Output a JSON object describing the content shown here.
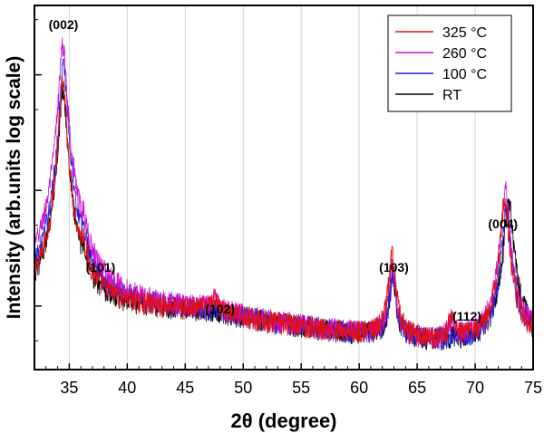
{
  "chart_data": {
    "type": "line",
    "title": "",
    "xlabel": "2θ (degree)",
    "ylabel": "Intensity (arb.units log scale)",
    "xlim": [
      32,
      75
    ],
    "x_ticks": [
      35,
      40,
      45,
      50,
      55,
      60,
      65,
      70,
      75
    ],
    "x_tick_labels": [
      "35",
      "40",
      "45",
      "50",
      "55",
      "60",
      "65",
      "70",
      "75"
    ],
    "y_scale": "log",
    "y_tick_labels_shown": false,
    "grid": "vertical",
    "legend_position": "top-right",
    "series": [
      {
        "name": "325 °C",
        "color": "#e01010",
        "baseline": [
          [
            32,
            1.0
          ],
          [
            40,
            0.95
          ],
          [
            47,
            0.9
          ],
          [
            52,
            0.72
          ],
          [
            58,
            0.6
          ],
          [
            62,
            0.55
          ],
          [
            66,
            0.5
          ],
          [
            70,
            0.5
          ],
          [
            75,
            0.55
          ]
        ],
        "peaks": [
          {
            "x": 34.45,
            "height": 82,
            "width": 0.28
          },
          {
            "x": 36.25,
            "height": 1.35,
            "width": 0.2
          },
          {
            "x": 47.55,
            "height": 0.3,
            "width": 0.28
          },
          {
            "x": 62.85,
            "height": 2.2,
            "width": 0.28
          },
          {
            "x": 67.95,
            "height": 0.3,
            "width": 0.25
          },
          {
            "x": 72.55,
            "height": 7.5,
            "width": 0.32
          }
        ]
      },
      {
        "name": "260 °C",
        "color": "#d010d0",
        "baseline": [
          [
            32,
            1.0
          ],
          [
            40,
            0.95
          ],
          [
            47,
            0.9
          ],
          [
            52,
            0.72
          ],
          [
            58,
            0.6
          ],
          [
            62,
            0.55
          ],
          [
            66,
            0.5
          ],
          [
            70,
            0.5
          ],
          [
            75,
            0.55
          ]
        ],
        "peaks": [
          {
            "x": 34.45,
            "height": 180,
            "width": 0.28
          },
          {
            "x": 36.25,
            "height": 1.5,
            "width": 0.2
          },
          {
            "x": 47.55,
            "height": 0.2,
            "width": 0.28
          },
          {
            "x": 62.85,
            "height": 1.6,
            "width": 0.28
          },
          {
            "x": 67.95,
            "height": 0.2,
            "width": 0.25
          },
          {
            "x": 72.6,
            "height": 9.8,
            "width": 0.32
          }
        ]
      },
      {
        "name": "100 °C",
        "color": "#2020e0",
        "baseline": [
          [
            32,
            1.0
          ],
          [
            40,
            0.95
          ],
          [
            47,
            0.9
          ],
          [
            52,
            0.72
          ],
          [
            58,
            0.6
          ],
          [
            62,
            0.55
          ],
          [
            66,
            0.5
          ],
          [
            70,
            0.5
          ],
          [
            75,
            0.55
          ]
        ],
        "peaks": [
          {
            "x": 34.5,
            "height": 120,
            "width": 0.28
          },
          {
            "x": 36.3,
            "height": 1.0,
            "width": 0.2
          },
          {
            "x": 62.9,
            "height": 1.3,
            "width": 0.28
          },
          {
            "x": 72.7,
            "height": 6.5,
            "width": 0.32
          }
        ]
      },
      {
        "name": "RT",
        "color": "#000000",
        "baseline": [
          [
            32,
            1.0
          ],
          [
            40,
            0.95
          ],
          [
            47,
            0.9
          ],
          [
            52,
            0.72
          ],
          [
            58,
            0.6
          ],
          [
            62,
            0.55
          ],
          [
            66,
            0.5
          ],
          [
            70,
            0.5
          ],
          [
            75,
            0.55
          ]
        ],
        "peaks": [
          {
            "x": 34.45,
            "height": 75,
            "width": 0.28
          },
          {
            "x": 36.3,
            "height": 0.8,
            "width": 0.2
          },
          {
            "x": 62.9,
            "height": 1.2,
            "width": 0.28
          },
          {
            "x": 72.9,
            "height": 7.2,
            "width": 0.35
          }
        ]
      }
    ],
    "annotations": [
      {
        "text": "(002)",
        "x": 34.5
      },
      {
        "text": "(101)",
        "x": 37.7
      },
      {
        "text": "(102)",
        "x": 48.0
      },
      {
        "text": "(103)",
        "x": 63.0
      },
      {
        "text": "(112)",
        "x": 69.3
      },
      {
        "text": "(004)",
        "x": 72.4
      }
    ]
  }
}
